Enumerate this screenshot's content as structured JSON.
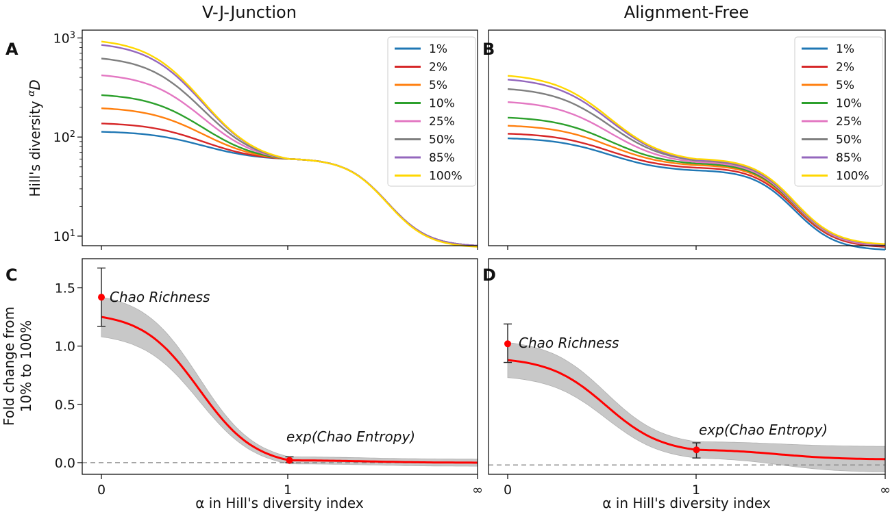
{
  "figure": {
    "column_titles": [
      "V-J-Junction",
      "Alignment-Free"
    ],
    "colors": {
      "1%": "#1f77b4",
      "2%": "#d62728",
      "5%": "#ff7f0e",
      "10%": "#2ca02c",
      "25%": "#e377c2",
      "50%": "#7f7f7f",
      "85%": "#9467bd",
      "100%": "#ffd700",
      "fold_line": "#ff0000",
      "band": "#c8c8c8",
      "axis": "#000000"
    }
  },
  "chart_data": [
    {
      "panel": "A",
      "type": "line",
      "column_title": "V-J-Junction",
      "ylabel_main": "Hill's diversity ",
      "ylabel_sup": "α",
      "ylabel_var": "D",
      "yscale": "log",
      "ylim": [
        8,
        1200
      ],
      "y_ticks": [
        {
          "base": "10",
          "exp": "1",
          "v": 10
        },
        {
          "base": "10",
          "exp": "2",
          "v": 100
        },
        {
          "base": "10",
          "exp": "3",
          "v": 1000
        }
      ],
      "x_ticks_shown": false,
      "legend_position": "top-right",
      "series": [
        {
          "name": "1%",
          "q0": 113,
          "q1": 60,
          "qinf": 8
        },
        {
          "name": "2%",
          "q0": 137,
          "q1": 60,
          "qinf": 8
        },
        {
          "name": "5%",
          "q0": 195,
          "q1": 60,
          "qinf": 8
        },
        {
          "name": "10%",
          "q0": 265,
          "q1": 60,
          "qinf": 8
        },
        {
          "name": "25%",
          "q0": 420,
          "q1": 60,
          "qinf": 8
        },
        {
          "name": "50%",
          "q0": 620,
          "q1": 60,
          "qinf": 8
        },
        {
          "name": "85%",
          "q0": 850,
          "q1": 60,
          "qinf": 8
        },
        {
          "name": "100%",
          "q0": 920,
          "q1": 60,
          "qinf": 7.8
        }
      ]
    },
    {
      "panel": "B",
      "type": "line",
      "column_title": "Alignment-Free",
      "yscale": "log",
      "ylim": [
        8,
        1200
      ],
      "x_ticks_shown": false,
      "legend_position": "top-right",
      "series": [
        {
          "name": "1%",
          "q0": 97,
          "q1": 46,
          "qinf": 7.3
        },
        {
          "name": "2%",
          "q0": 108,
          "q1": 49,
          "qinf": 7.8
        },
        {
          "name": "5%",
          "q0": 130,
          "q1": 52,
          "qinf": 8
        },
        {
          "name": "10%",
          "q0": 157,
          "q1": 54,
          "qinf": 8
        },
        {
          "name": "25%",
          "q0": 225,
          "q1": 56,
          "qinf": 8
        },
        {
          "name": "50%",
          "q0": 305,
          "q1": 58,
          "qinf": 8.2
        },
        {
          "name": "85%",
          "q0": 380,
          "q1": 59,
          "qinf": 8.2
        },
        {
          "name": "100%",
          "q0": 415,
          "q1": 60,
          "qinf": 8.3
        }
      ]
    },
    {
      "panel": "C",
      "type": "line",
      "ylabel_lines": [
        "Fold change from",
        "10% to 100%"
      ],
      "xlabel": "α in Hill's diversity index",
      "x_tick_labels": [
        "0",
        "1",
        "∞"
      ],
      "y_tick_labels": [
        "0.0",
        "0.5",
        "1.0",
        "1.5"
      ],
      "ylim": [
        -0.1,
        1.75
      ],
      "fold_change": {
        "q0": 1.25,
        "q1": 0.02,
        "qinf": 0.0,
        "band_q0": 0.17,
        "band_q1": 0.03,
        "band_qinf": 0.03
      },
      "points": [
        {
          "label": "Chao Richness",
          "x": 0,
          "y": 1.42,
          "err_low": 1.17,
          "err_high": 1.67
        },
        {
          "label": "exp(Chao Entropy)",
          "x": 1,
          "y": 0.02,
          "err_low": 0.0,
          "err_high": 0.05
        }
      ],
      "reference_line": 0.0
    },
    {
      "panel": "D",
      "type": "line",
      "xlabel": "α in Hill's diversity index",
      "x_tick_labels": [
        "0",
        "1",
        "∞"
      ],
      "ylim": [
        -0.1,
        1.75
      ],
      "fold_change": {
        "q0": 0.88,
        "q1": 0.11,
        "qinf": 0.03,
        "band_q0": 0.15,
        "band_q1": 0.07,
        "band_qinf": 0.11
      },
      "points": [
        {
          "label": "Chao Richness",
          "x": 0,
          "y": 1.02,
          "err_low": 0.86,
          "err_high": 1.19
        },
        {
          "label": "exp(Chao Entropy)",
          "x": 1,
          "y": 0.11,
          "err_low": 0.04,
          "err_high": 0.17
        }
      ],
      "reference_line": -0.02
    }
  ]
}
